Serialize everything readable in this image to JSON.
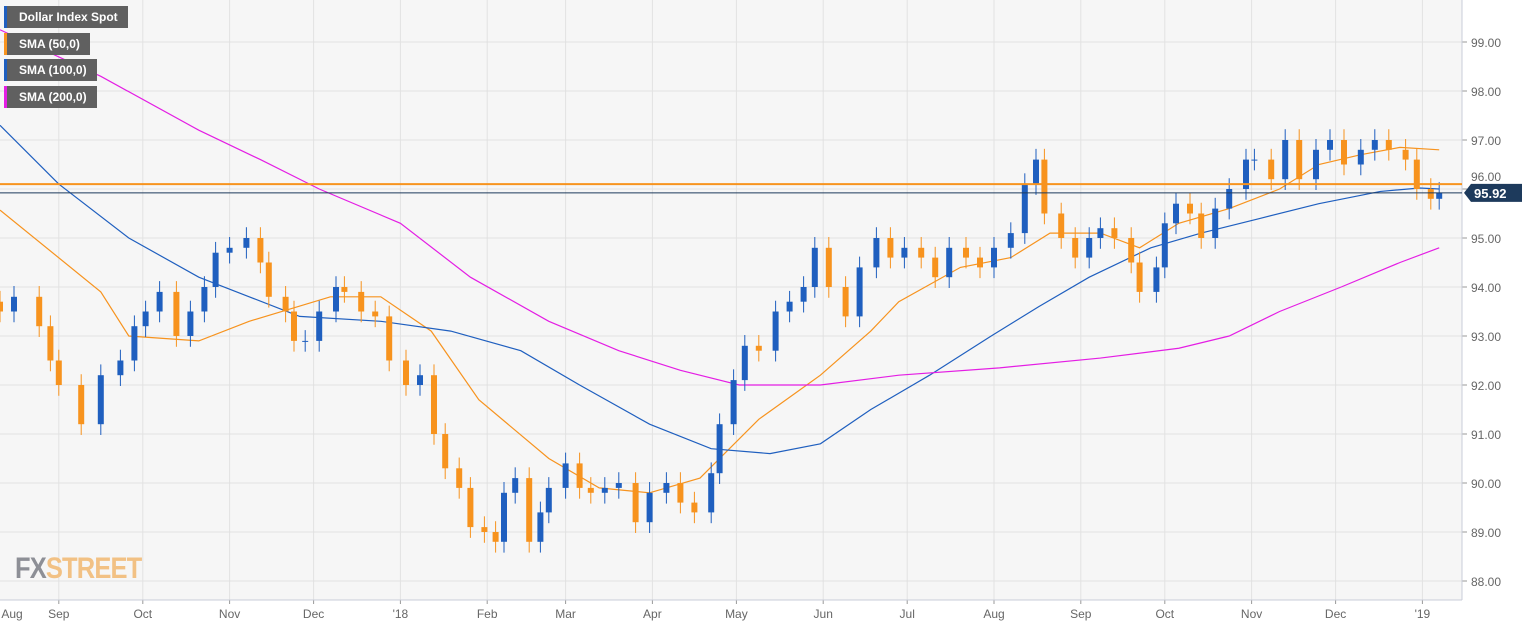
{
  "legend": [
    {
      "label": "Dollar Index Spot",
      "color": "#1f5fbf"
    },
    {
      "label": "SMA (50,0)",
      "color": "#f7931e"
    },
    {
      "label": "SMA (100,0)",
      "color": "#1f5fbf"
    },
    {
      "label": "SMA (200,0)",
      "color": "#e41ee4"
    }
  ],
  "logo": {
    "part1": "FX",
    "part2": "STREET"
  },
  "chart_data": {
    "type": "candlestick",
    "title": "Dollar Index Spot",
    "x_unit": "days since 2017-08-01",
    "xticks": [
      {
        "label": "Aug",
        "day": 0
      },
      {
        "label": "Sep",
        "day": 31
      },
      {
        "label": "Oct",
        "day": 61
      },
      {
        "label": "Nov",
        "day": 92
      },
      {
        "label": "Dec",
        "day": 122
      },
      {
        "label": "'18",
        "day": 153
      },
      {
        "label": "Feb",
        "day": 184
      },
      {
        "label": "Mar",
        "day": 212
      },
      {
        "label": "Apr",
        "day": 243
      },
      {
        "label": "May",
        "day": 273
      },
      {
        "label": "Jun",
        "day": 304
      },
      {
        "label": "Jul",
        "day": 334
      },
      {
        "label": "Aug",
        "day": 365
      },
      {
        "label": "Sep",
        "day": 396
      },
      {
        "label": "Oct",
        "day": 426
      },
      {
        "label": "Nov",
        "day": 457
      },
      {
        "label": "Dec",
        "day": 487
      },
      {
        "label": "'19",
        "day": 518
      }
    ],
    "yticks": [
      "88.00",
      "89.00",
      "90.00",
      "91.00",
      "92.00",
      "93.00",
      "94.00",
      "95.00",
      "96.00",
      "97.00",
      "98.00",
      "99.00"
    ],
    "ylim": [
      87.6,
      99.9
    ],
    "current_price": "95.92",
    "resistance_level": 96.1,
    "colors": {
      "up": "#1f5fbf",
      "down": "#f7931e",
      "sma50": "#f7931e",
      "sma100": "#1f5fbf",
      "sma200": "#e41ee4"
    },
    "closes": [
      [
        10,
        93.5
      ],
      [
        15,
        93.8
      ],
      [
        24,
        93.2
      ],
      [
        28,
        92.5
      ],
      [
        31,
        92.0
      ],
      [
        39,
        91.2
      ],
      [
        46,
        92.2
      ],
      [
        53,
        92.5
      ],
      [
        58,
        93.2
      ],
      [
        62,
        93.5
      ],
      [
        67,
        93.9
      ],
      [
        73,
        93.0
      ],
      [
        78,
        93.5
      ],
      [
        83,
        94.0
      ],
      [
        87,
        94.7
      ],
      [
        92,
        94.8
      ],
      [
        98,
        95.0
      ],
      [
        103,
        94.5
      ],
      [
        106,
        93.8
      ],
      [
        112,
        93.5
      ],
      [
        115,
        92.9
      ],
      [
        119,
        92.9
      ],
      [
        124,
        93.5
      ],
      [
        130,
        94.0
      ],
      [
        133,
        93.9
      ],
      [
        139,
        93.5
      ],
      [
        144,
        93.4
      ],
      [
        149,
        92.5
      ],
      [
        155,
        92.0
      ],
      [
        160,
        92.2
      ],
      [
        165,
        91.0
      ],
      [
        169,
        90.3
      ],
      [
        174,
        89.9
      ],
      [
        178,
        89.1
      ],
      [
        183,
        89.0
      ],
      [
        187,
        88.8
      ],
      [
        190,
        89.8
      ],
      [
        194,
        90.1
      ],
      [
        199,
        88.8
      ],
      [
        203,
        89.4
      ],
      [
        206,
        89.9
      ],
      [
        212,
        90.4
      ],
      [
        217,
        89.9
      ],
      [
        221,
        89.8
      ],
      [
        226,
        89.9
      ],
      [
        231,
        90.0
      ],
      [
        237,
        89.2
      ],
      [
        242,
        89.8
      ],
      [
        248,
        90.0
      ],
      [
        253,
        89.6
      ],
      [
        258,
        89.4
      ],
      [
        264,
        90.2
      ],
      [
        267,
        91.2
      ],
      [
        272,
        92.1
      ],
      [
        276,
        92.8
      ],
      [
        281,
        92.7
      ],
      [
        287,
        93.5
      ],
      [
        292,
        93.7
      ],
      [
        297,
        94.0
      ],
      [
        301,
        94.8
      ],
      [
        306,
        94.0
      ],
      [
        312,
        93.4
      ],
      [
        317,
        94.4
      ],
      [
        323,
        95.0
      ],
      [
        328,
        94.6
      ],
      [
        333,
        94.8
      ],
      [
        339,
        94.6
      ],
      [
        344,
        94.2
      ],
      [
        349,
        94.8
      ],
      [
        355,
        94.6
      ],
      [
        360,
        94.4
      ],
      [
        365,
        94.8
      ],
      [
        371,
        95.1
      ],
      [
        376,
        96.1
      ],
      [
        380,
        96.6
      ],
      [
        383,
        95.5
      ],
      [
        389,
        95.0
      ],
      [
        394,
        94.6
      ],
      [
        399,
        95.0
      ],
      [
        403,
        95.2
      ],
      [
        408,
        95.0
      ],
      [
        414,
        94.5
      ],
      [
        417,
        93.9
      ],
      [
        423,
        94.4
      ],
      [
        426,
        95.3
      ],
      [
        430,
        95.7
      ],
      [
        435,
        95.5
      ],
      [
        439,
        95.0
      ],
      [
        444,
        95.6
      ],
      [
        449,
        96.0
      ],
      [
        455,
        96.6
      ],
      [
        458,
        96.6
      ],
      [
        464,
        96.2
      ],
      [
        469,
        97.0
      ],
      [
        474,
        96.2
      ],
      [
        480,
        96.8
      ],
      [
        485,
        97.0
      ],
      [
        490,
        96.5
      ],
      [
        496,
        96.8
      ],
      [
        501,
        97.0
      ],
      [
        506,
        96.8
      ],
      [
        512,
        96.6
      ],
      [
        516,
        96.0
      ],
      [
        521,
        95.8
      ],
      [
        524,
        95.92
      ]
    ],
    "series": [
      {
        "name": "SMA (50,0)",
        "points": [
          [
            10,
            95.57
          ],
          [
            46,
            93.9
          ],
          [
            56,
            93.0
          ],
          [
            81,
            92.9
          ],
          [
            99,
            93.3
          ],
          [
            128,
            93.8
          ],
          [
            146,
            93.8
          ],
          [
            164,
            93.1
          ],
          [
            181,
            91.7
          ],
          [
            206,
            90.5
          ],
          [
            224,
            89.9
          ],
          [
            242,
            89.8
          ],
          [
            260,
            90.1
          ],
          [
            281,
            91.3
          ],
          [
            303,
            92.2
          ],
          [
            321,
            93.1
          ],
          [
            331,
            93.7
          ],
          [
            353,
            94.4
          ],
          [
            371,
            94.6
          ],
          [
            385,
            95.1
          ],
          [
            403,
            95.1
          ],
          [
            417,
            94.8
          ],
          [
            431,
            95.3
          ],
          [
            449,
            95.6
          ],
          [
            467,
            96.0
          ],
          [
            481,
            96.5
          ],
          [
            496,
            96.7
          ],
          [
            510,
            96.85
          ],
          [
            524,
            96.8
          ]
        ]
      },
      {
        "name": "SMA (100,0)",
        "points": [
          [
            10,
            97.3
          ],
          [
            31,
            96.1
          ],
          [
            56,
            95.0
          ],
          [
            81,
            94.2
          ],
          [
            99,
            93.8
          ],
          [
            117,
            93.4
          ],
          [
            146,
            93.3
          ],
          [
            171,
            93.1
          ],
          [
            196,
            92.7
          ],
          [
            217,
            92.0
          ],
          [
            242,
            91.2
          ],
          [
            264,
            90.7
          ],
          [
            285,
            90.6
          ],
          [
            303,
            90.8
          ],
          [
            321,
            91.5
          ],
          [
            342,
            92.2
          ],
          [
            364,
            93.0
          ],
          [
            381,
            93.6
          ],
          [
            399,
            94.2
          ],
          [
            421,
            94.8
          ],
          [
            439,
            95.1
          ],
          [
            460,
            95.4
          ],
          [
            481,
            95.7
          ],
          [
            503,
            95.95
          ],
          [
            517,
            96.02
          ],
          [
            524,
            96.0
          ]
        ]
      },
      {
        "name": "SMA (200,0)",
        "points": [
          [
            10,
            99.25
          ],
          [
            46,
            98.3
          ],
          [
            81,
            97.2
          ],
          [
            103,
            96.6
          ],
          [
            124,
            96.0
          ],
          [
            153,
            95.3
          ],
          [
            178,
            94.2
          ],
          [
            206,
            93.3
          ],
          [
            231,
            92.7
          ],
          [
            253,
            92.3
          ],
          [
            274,
            92.0
          ],
          [
            303,
            92.0
          ],
          [
            331,
            92.2
          ],
          [
            367,
            92.35
          ],
          [
            403,
            92.55
          ],
          [
            431,
            92.75
          ],
          [
            449,
            93.0
          ],
          [
            467,
            93.5
          ],
          [
            489,
            94.0
          ],
          [
            510,
            94.5
          ],
          [
            524,
            94.8
          ]
        ]
      }
    ]
  }
}
